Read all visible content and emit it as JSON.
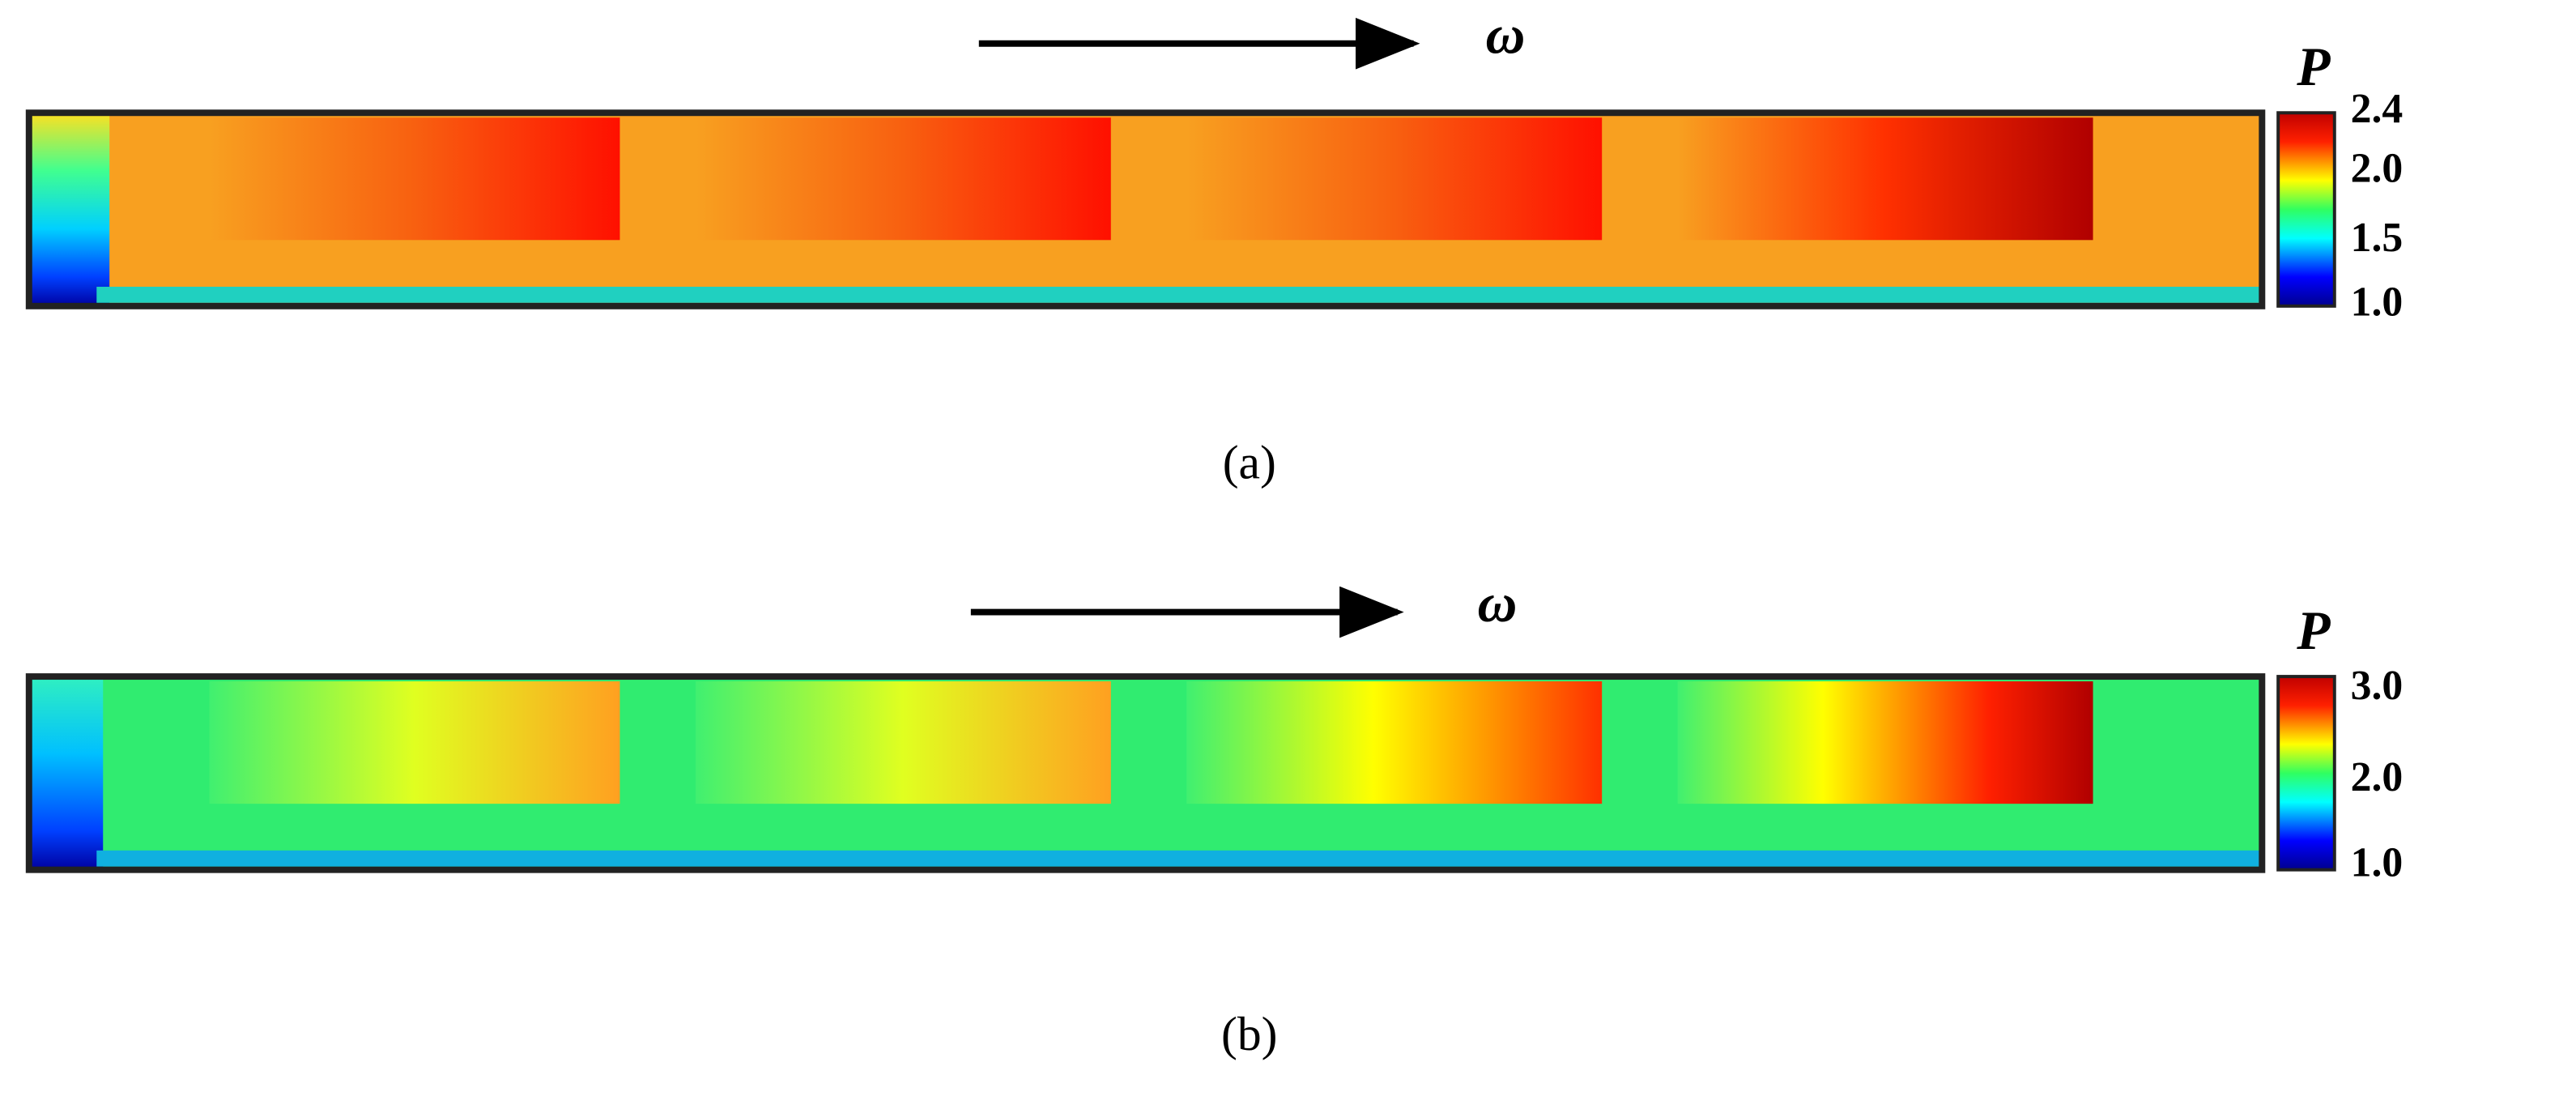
{
  "panels": [
    {
      "rotation_symbol": "ω",
      "colorbar": {
        "title": "P",
        "ticks": [
          "2.4",
          "2.0",
          "1.5",
          "1.0"
        ]
      },
      "label": "(a)"
    },
    {
      "rotation_symbol": "ω",
      "colorbar": {
        "title": "P",
        "ticks": [
          "3.0",
          "2.0",
          "1.0"
        ]
      },
      "label": "(b)"
    }
  ]
}
